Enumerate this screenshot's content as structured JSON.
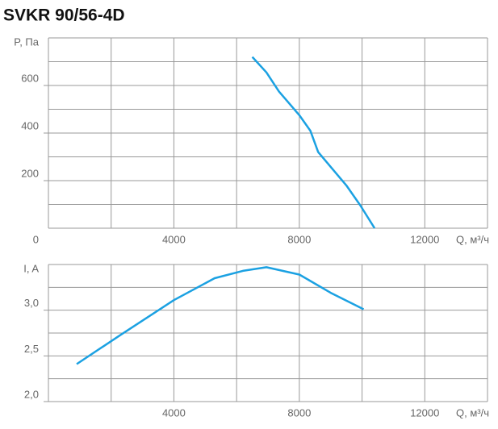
{
  "chart_data": [
    {
      "type": "line",
      "title": "SVKR 90/56-4D",
      "y_label": "P, Па",
      "x_label": "Q, м³/ч",
      "x": [
        6500,
        6950,
        7350,
        8000,
        8350,
        8600,
        9050,
        9500,
        9950,
        10400
      ],
      "series": [
        {
          "color": "#1ba1e2",
          "values": [
            720,
            655,
            575,
            475,
            410,
            320,
            250,
            180,
            95,
            0
          ]
        }
      ],
      "xlim": [
        0,
        14000
      ],
      "xticks": [
        0,
        4000,
        8000,
        12000
      ],
      "minor_xticks": [
        2000,
        6000,
        10000,
        14000
      ],
      "ylim": [
        0,
        800
      ],
      "yticks": [
        200,
        400,
        600
      ],
      "minor_yticks": [
        100,
        300,
        500,
        700,
        800
      ],
      "grid": true
    },
    {
      "type": "line",
      "y_label": "I, A",
      "x_label": "Q, м³/ч",
      "x": [
        900,
        2300,
        4000,
        5300,
        6200,
        6950,
        8000,
        9000,
        10050
      ],
      "series": [
        {
          "color": "#1ba1e2",
          "values": [
            2.41,
            2.73,
            3.11,
            3.35,
            3.43,
            3.47,
            3.39,
            3.19,
            3.01
          ]
        }
      ],
      "xlim": [
        0,
        14000
      ],
      "xticks": [
        4000,
        8000,
        12000
      ],
      "minor_xticks": [
        2000,
        6000,
        10000,
        14000
      ],
      "ylim": [
        2,
        3.5
      ],
      "yticks": [
        {
          "value": 2,
          "label": "2,0"
        },
        {
          "value": 2.5,
          "label": "2,5"
        },
        {
          "value": 3,
          "label": "3,0"
        }
      ],
      "minor_yticks": [
        2.25,
        2.75,
        3.25,
        3.5
      ],
      "grid": true
    }
  ]
}
